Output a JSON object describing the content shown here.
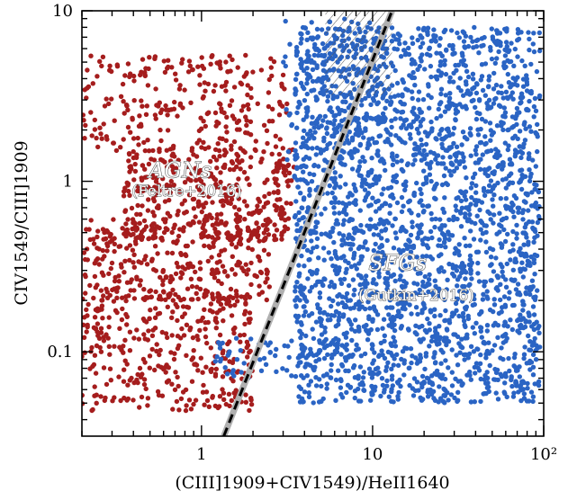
{
  "chart_data": {
    "type": "scatter",
    "title": "",
    "xlabel": "(CIII]1909+CIV1549)/HeII1640",
    "ylabel": "CIV1549/CIII]1909",
    "xscale": "log",
    "yscale": "log",
    "xlim": [
      0.2,
      100
    ],
    "ylim": [
      0.032,
      10
    ],
    "x_ticks": [
      {
        "value": 1,
        "label": "1"
      },
      {
        "value": 10,
        "label": "10"
      },
      {
        "value": 100,
        "label": "10²"
      }
    ],
    "y_ticks": [
      {
        "value": 0.1,
        "label": "0.1"
      },
      {
        "value": 1,
        "label": "1"
      },
      {
        "value": 10,
        "label": "10"
      }
    ],
    "grid": false,
    "series": [
      {
        "name": "AGNs",
        "color": "#a51d1d",
        "note_label": "(Feltre+2016)",
        "label_position": [
          0.75,
          1.05
        ],
        "note_position": [
          0.82,
          0.82
        ],
        "clusters": [
          {
            "x_range": [
              0.2,
              3.2
            ],
            "y_range": [
              1.5,
              5.5
            ],
            "count": 260
          },
          {
            "x_range": [
              0.35,
              3.5
            ],
            "y_range": [
              0.45,
              1.6
            ],
            "count": 380
          },
          {
            "x_range": [
              0.2,
              2.5
            ],
            "y_range": [
              0.2,
              0.6
            ],
            "count": 330
          },
          {
            "x_range": [
              0.2,
              2.0
            ],
            "y_range": [
              0.045,
              0.22
            ],
            "count": 360
          }
        ]
      },
      {
        "name": "SFGs",
        "color": "#2a64c4",
        "note_label": "(Gutkin+2016)",
        "label_position": [
          14,
          0.3
        ],
        "note_position": [
          18,
          0.2
        ],
        "clusters": [
          {
            "x_range": [
              3.5,
              95
            ],
            "y_range": [
              0.05,
              8.0
            ],
            "count": 2600
          },
          {
            "x_range": [
              1.2,
              6.0
            ],
            "y_range": [
              0.07,
              0.12
            ],
            "count": 60
          },
          {
            "x_range": [
              3.0,
              12.0
            ],
            "y_range": [
              1.0,
              9.0
            ],
            "count": 120
          }
        ]
      }
    ],
    "demarcation_line": {
      "x1": 1.35,
      "y1": 0.032,
      "x2": 13.0,
      "y2": 10
    },
    "hatched_region": {
      "x_min": 5.3,
      "x_max": 13,
      "y_min": 3.2,
      "y_max": 10
    }
  }
}
